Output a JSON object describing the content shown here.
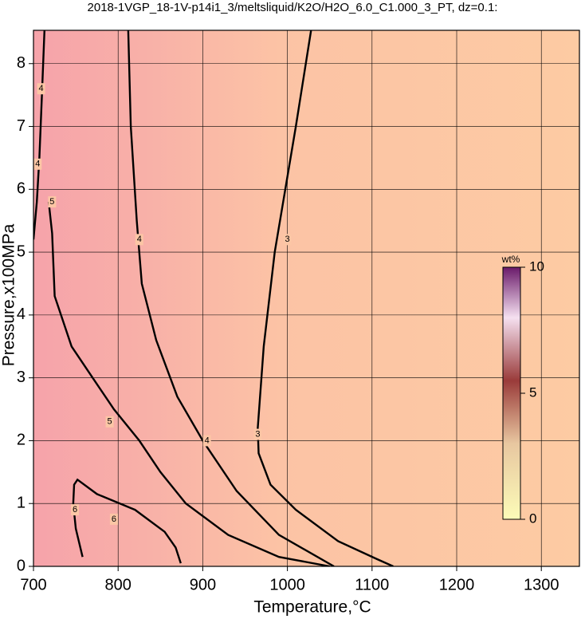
{
  "chart_data": {
    "type": "contour",
    "title": "2018-1VGP_18-1V-p14i1_3/meltsliquid/K2O/H2O_6.0_C1.000_3_PT, dz=0.1:",
    "x_label": "Temperature,°C",
    "y_label": "Pressure,x100MPa",
    "xlim": [
      700,
      1345
    ],
    "ylim": [
      0,
      8.53
    ],
    "xticks": [
      700,
      800,
      900,
      1000,
      1100,
      1200,
      1300
    ],
    "yticks": [
      0,
      1,
      2,
      3,
      4,
      5,
      6,
      7,
      8
    ],
    "grid": true,
    "series": [
      {
        "level": 3,
        "color": "#000000",
        "x": [
          1028,
          1010,
          985,
          972,
          965,
          966,
          980,
          1010,
          1060,
          1105,
          1125
        ],
        "values": [
          8.53,
          7,
          5,
          3.5,
          2.2,
          1.8,
          1.3,
          0.9,
          0.4,
          0.12,
          0
        ],
        "label_at": [
          [
            1000,
            5.2
          ],
          [
            965,
            2.1
          ]
        ]
      },
      {
        "level": 4,
        "color": "#000000",
        "x": [
          812,
          815,
          822,
          828,
          845,
          870,
          900,
          940,
          990,
          1055
        ],
        "values": [
          8.53,
          7,
          5.5,
          4.5,
          3.6,
          2.7,
          2.0,
          1.2,
          0.5,
          0
        ],
        "label_at": [
          [
            825,
            5.2
          ],
          [
            905,
            2.0
          ]
        ]
      },
      {
        "level": 4,
        "color": "#000000",
        "x": [
          713,
          710,
          707,
          704,
          700
        ],
        "values": [
          8.53,
          7.5,
          6.5,
          5.8,
          5.2
        ],
        "label_at": [
          [
            709,
            7.6
          ],
          [
            705,
            6.4
          ]
        ]
      },
      {
        "level": 5,
        "color": "#000000",
        "x": [
          718,
          722,
          725,
          745,
          770,
          795,
          825,
          850,
          880,
          930,
          990,
          1050
        ],
        "values": [
          5.8,
          5.3,
          4.3,
          3.5,
          3.0,
          2.5,
          2.0,
          1.5,
          1.0,
          0.5,
          0.15,
          0
        ],
        "label_at": [
          [
            722,
            5.8
          ],
          [
            790,
            2.3
          ]
        ]
      },
      {
        "level": 6,
        "color": "#000000",
        "x": [
          758,
          750,
          747,
          748,
          752,
          775,
          820,
          855,
          868,
          874
        ],
        "values": [
          0.15,
          0.6,
          1.0,
          1.3,
          1.38,
          1.15,
          0.9,
          0.55,
          0.3,
          0.05
        ],
        "label_at": [
          [
            749,
            0.9
          ],
          [
            795,
            0.75
          ]
        ]
      }
    ],
    "colorbar": {
      "label": "wt%",
      "lim": [
        0,
        10
      ],
      "ticks": [
        0,
        5,
        10
      ]
    }
  }
}
